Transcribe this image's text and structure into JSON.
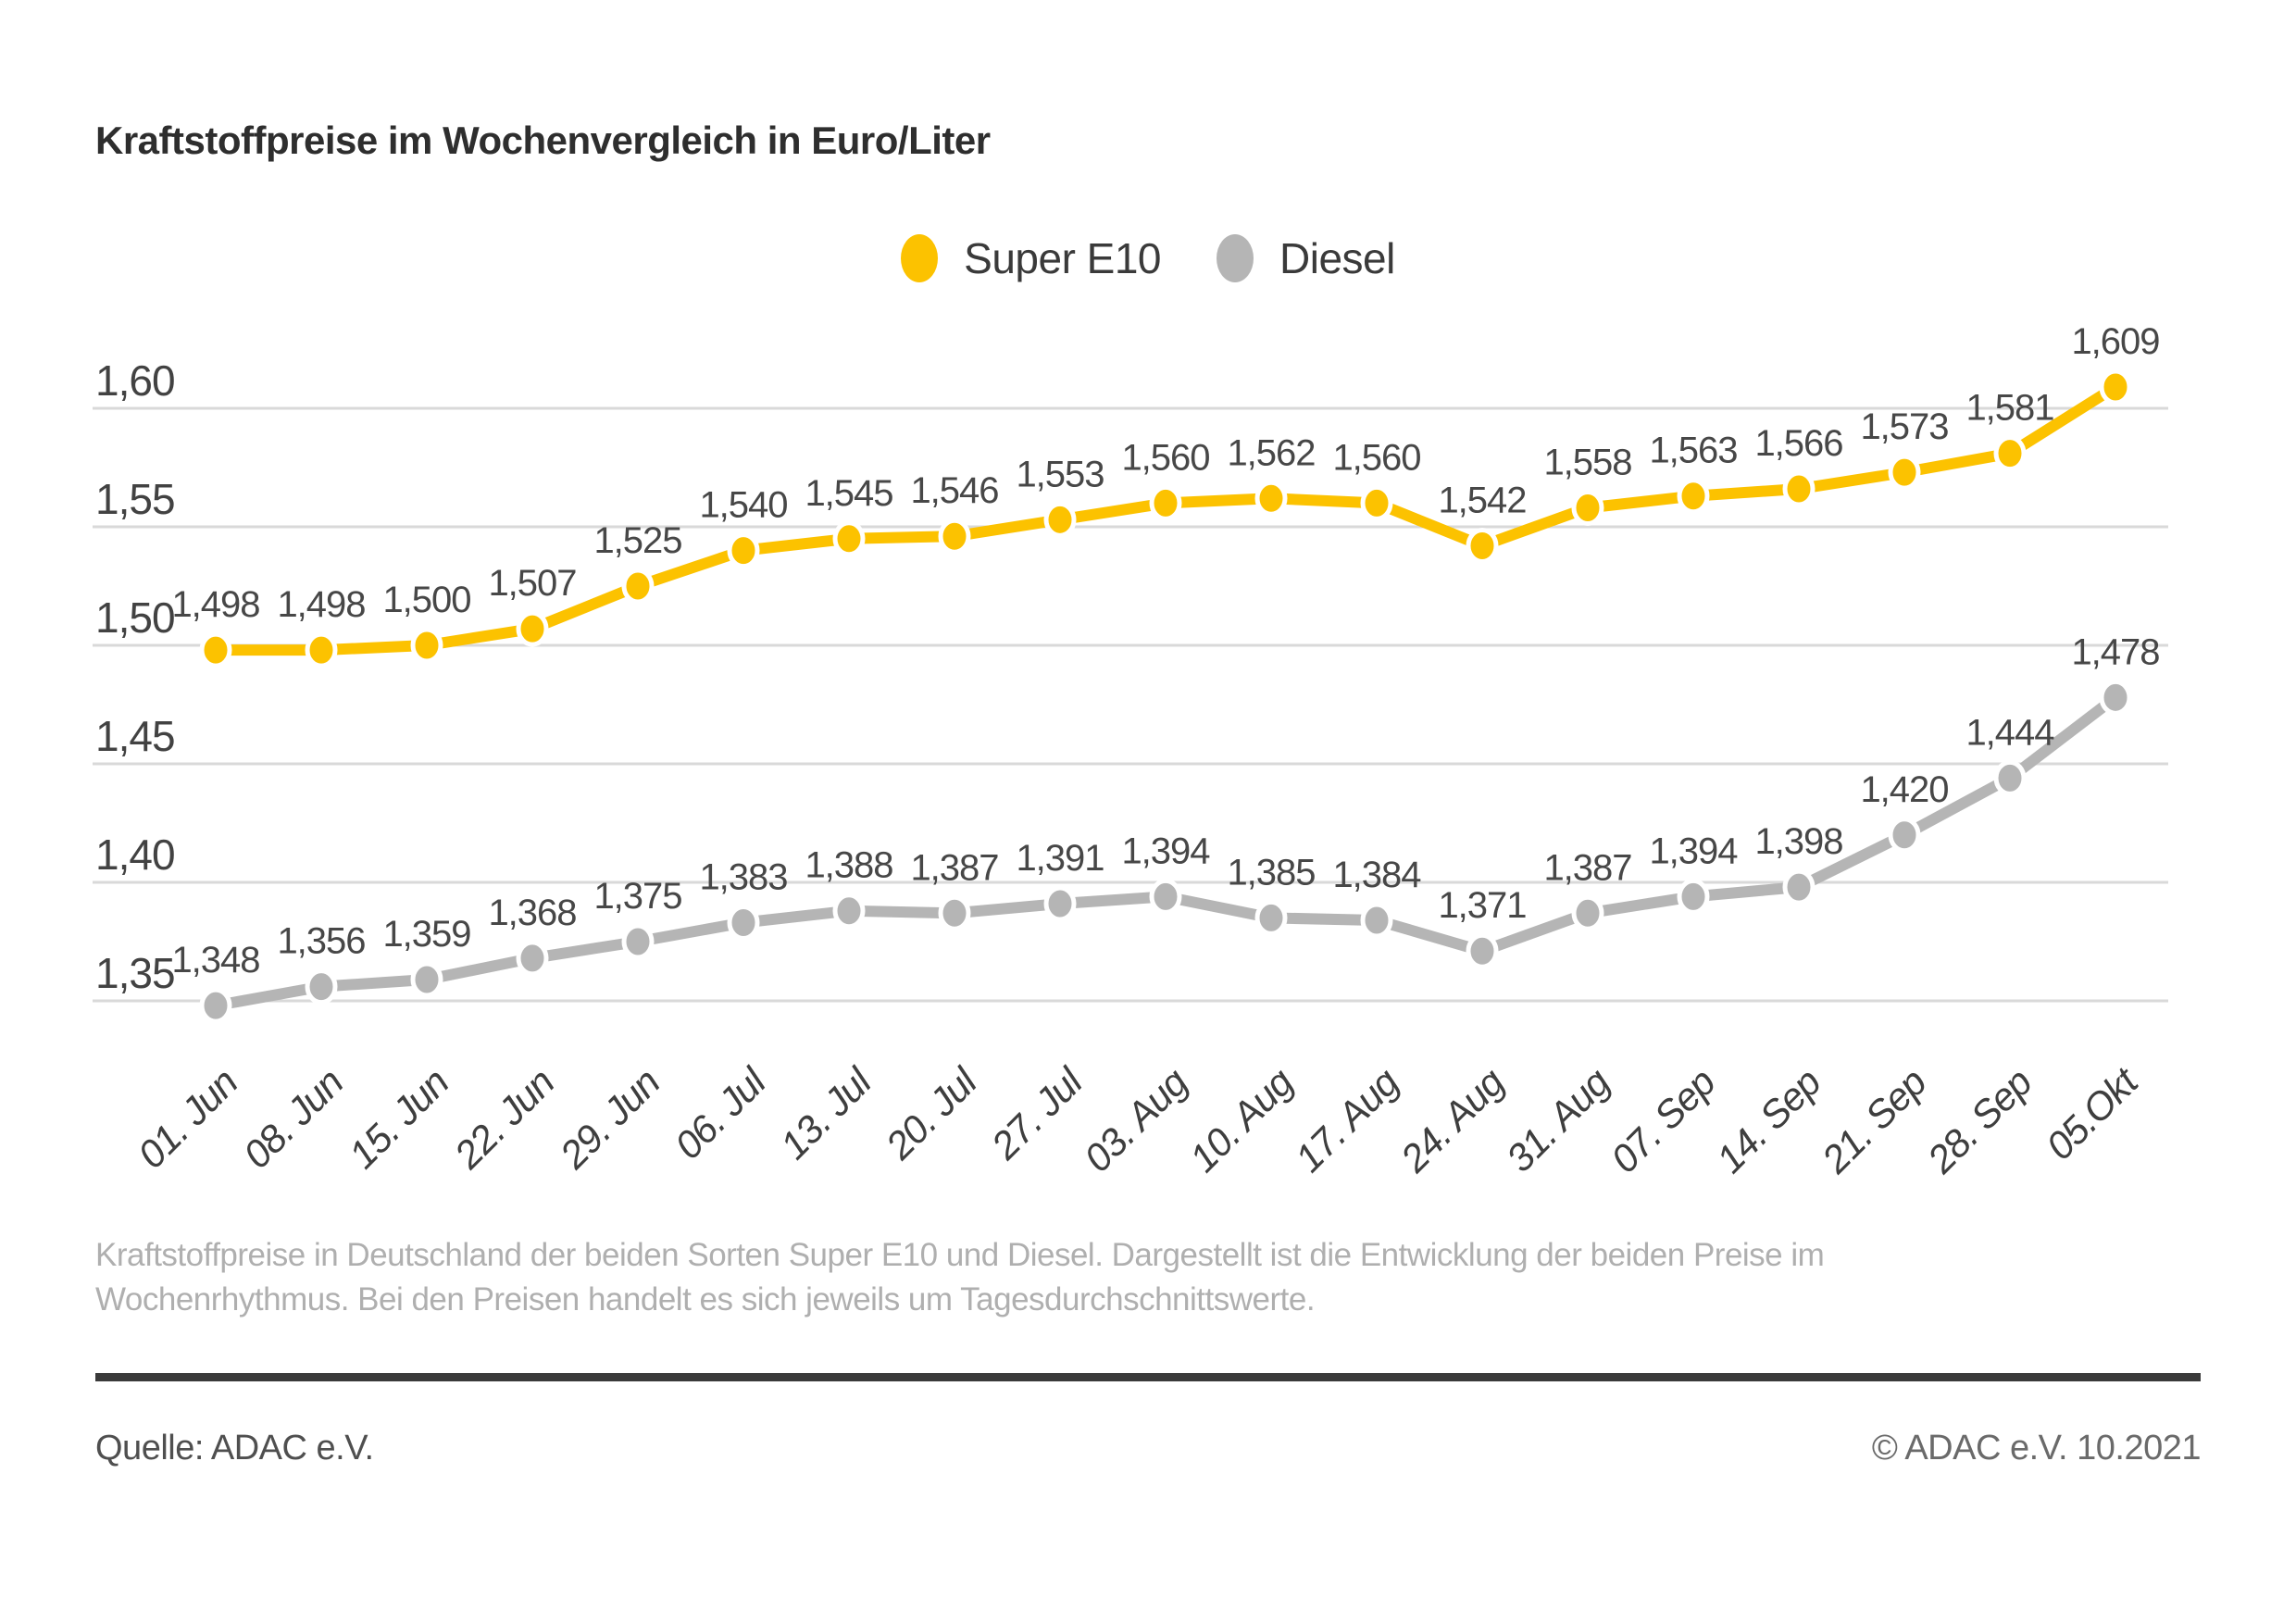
{
  "page": {
    "title": "Kraftstoffpreise im Wochenvergleich in Euro/Liter",
    "footnote_lines": [
      "Kraftstoffpreise in Deutschland der beiden Sorten Super E10 und Diesel. Dargestellt ist die Entwicklung der beiden Preise im",
      "Wochenrhythmus. Bei den Preisen handelt es sich jeweils um Tagesdurchschnittswerte."
    ],
    "source_left": "Quelle: ADAC e.V.",
    "source_right": "© ADAC e.V. 10.2021"
  },
  "colors": {
    "super_e10": "#fcc200",
    "diesel": "#b5b5b5",
    "gridline": "#d9d9d9",
    "axis_text": "#424242",
    "data_label": "#474747",
    "x_label": "#3e3e3e",
    "footnote_text": "#afafaf",
    "divider": "#3a3a3a"
  },
  "chart_data": {
    "type": "line",
    "title": "Kraftstoffpreise im Wochenvergleich in Euro/Liter",
    "unit": "Euro/Liter",
    "grid": true,
    "legend_position": "top",
    "ylim": [
      1.33,
      1.63
    ],
    "yticks": [
      {
        "value": 1.6,
        "label": "1,60"
      },
      {
        "value": 1.55,
        "label": "1,55"
      },
      {
        "value": 1.5,
        "label": "1,50"
      },
      {
        "value": 1.45,
        "label": "1,45"
      },
      {
        "value": 1.4,
        "label": "1,40"
      },
      {
        "value": 1.35,
        "label": "1,35"
      }
    ],
    "categories": [
      "01. Jun",
      "08. Jun",
      "15. Jun",
      "22. Jun",
      "29. Jun",
      "06. Jul",
      "13. Jul",
      "20. Jul",
      "27. Jul",
      "03. Aug",
      "10. Aug",
      "17. Aug",
      "24. Aug",
      "31. Aug",
      "07. Sep",
      "14. Sep",
      "21. Sep",
      "28. Sep",
      "05.Okt"
    ],
    "series": [
      {
        "name": "Super E10",
        "color": "#fcc200",
        "values": [
          1.498,
          1.498,
          1.5,
          1.507,
          1.525,
          1.54,
          1.545,
          1.546,
          1.553,
          1.56,
          1.562,
          1.56,
          1.542,
          1.558,
          1.563,
          1.566,
          1.573,
          1.581,
          1.609
        ],
        "labels": [
          "1,498",
          "1,498",
          "1,500",
          "1,507",
          "1,525",
          "1,540",
          "1,545",
          "1,546",
          "1,553",
          "1,560",
          "1,562",
          "1,560",
          "1,542",
          "1,558",
          "1,563",
          "1,566",
          "1,573",
          "1,581",
          "1,609"
        ]
      },
      {
        "name": "Diesel",
        "color": "#b5b5b5",
        "values": [
          1.348,
          1.356,
          1.359,
          1.368,
          1.375,
          1.383,
          1.388,
          1.387,
          1.391,
          1.394,
          1.385,
          1.384,
          1.371,
          1.387,
          1.394,
          1.398,
          1.42,
          1.444,
          1.478
        ],
        "labels": [
          "1,348",
          "1,356",
          "1,359",
          "1,368",
          "1,375",
          "1,383",
          "1,388",
          "1,387",
          "1,391",
          "1,394",
          "1,385",
          "1,384",
          "1,371",
          "1,387",
          "1,394",
          "1,398",
          "1,420",
          "1,444",
          "1,478"
        ]
      }
    ]
  }
}
